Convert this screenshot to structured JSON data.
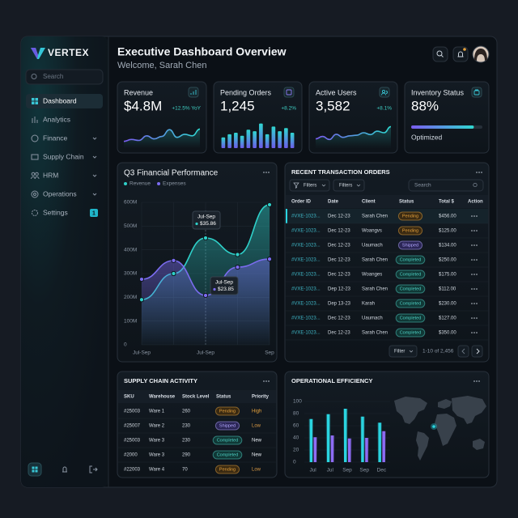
{
  "sidebar": {
    "brand": "VERTEX",
    "search_placeholder": "Search",
    "nav": [
      "Dashboard",
      "Analytics",
      "Finance",
      "Supply Chain",
      "HRM",
      "Operations",
      "Settings"
    ],
    "badge": "1"
  },
  "header": {
    "title": "Executive Dashboard Overview",
    "subtitle": "Welcome, Sarah Chen"
  },
  "kpis": [
    {
      "label": "Revenue",
      "value": "$4.8M",
      "delta": "+12.5% YoY",
      "trend": [
        22,
        28,
        25,
        40,
        30,
        38,
        60,
        35,
        45,
        40,
        62
      ]
    },
    {
      "label": "Pending Orders",
      "value": "1,245",
      "delta": "+8.2%",
      "bars": [
        35,
        45,
        50,
        40,
        60,
        55,
        80,
        45,
        70,
        55,
        65,
        50
      ]
    },
    {
      "label": "Active Users",
      "value": "3,582",
      "delta": "+8.1%",
      "trend": [
        30,
        38,
        28,
        45,
        35,
        40,
        42,
        50,
        44,
        55,
        50,
        70
      ]
    },
    {
      "label": "Inventory Status",
      "value": "88%",
      "progress": 88,
      "status": "Optimized"
    }
  ],
  "financial_chart": {
    "type": "line",
    "title": "Q3 Financial Performance",
    "categories": [
      "Jul-Sep",
      null,
      "Jul-Sep",
      null,
      "Sep"
    ],
    "series": [
      {
        "name": "Revenue",
        "color": "#2fd0c9",
        "values": [
          190,
          300,
          450,
          380,
          590
        ]
      },
      {
        "name": "Expenses",
        "color": "#7b6cf0",
        "values": [
          276,
          355,
          208,
          327,
          361
        ]
      }
    ],
    "ylim": [
      0,
      600
    ],
    "yticks": [
      0,
      {
        "value": 100,
        "label": "100M"
      },
      {
        "value": 200,
        "label": "200M"
      },
      {
        "value": 300,
        "label": "300M"
      },
      {
        "value": 400,
        "label": "400M"
      },
      {
        "value": 500,
        "label": "500M"
      },
      {
        "value": 600,
        "label": "600M"
      }
    ],
    "grid": true,
    "tooltips": [
      {
        "title": "Jul-Sep",
        "value": "$35.86"
      },
      {
        "title": "Jul-Sep",
        "value": "$23.85"
      }
    ]
  },
  "transactions": {
    "title": "RECENT TRANSACTION ORDERS",
    "filters": [
      "Filters",
      "Filters"
    ],
    "search": "Search",
    "columns": [
      "Order ID",
      "Date",
      "Client",
      "Status",
      "Total $",
      "Action"
    ],
    "rows": [
      [
        "#VXE-1023...",
        "Dec 12-23",
        "Sarah Chen",
        "Pending",
        "$456.00"
      ],
      [
        "#VXE-1023...",
        "Dec 12-23",
        "Woangvs",
        "Pending",
        "$125.00"
      ],
      [
        "#VXE-1023...",
        "Dec 12-23",
        "Uaumach",
        "Shipped",
        "$134.00"
      ],
      [
        "#VXE-1023...",
        "Dec 12-23",
        "Sarah Chen",
        "Completed",
        "$250.00"
      ],
      [
        "#VXE-1023...",
        "Dec 12-23",
        "Woanges",
        "Completed",
        "$175.00"
      ],
      [
        "#VXE-1023...",
        "Dep 12-23",
        "Sarah Chen",
        "Completed",
        "$112.00"
      ],
      [
        "#VXE-1023...",
        "Dep 13-23",
        "Karah",
        "Completed",
        "$230.00"
      ],
      [
        "#VXE-1023...",
        "Dec 12-23",
        "Uaumach",
        "Completed",
        "$127.00"
      ],
      [
        "#VXE-1023...",
        "Dec 12-23",
        "Sarah Chen",
        "Completed",
        "$350.00"
      ]
    ],
    "footer_filter": "Filter",
    "pagination": "1-10 of 2,456"
  },
  "supply_chain": {
    "title": "SUPPLY CHAIN ACTIVITY",
    "columns": [
      "SKU",
      "Warehouse",
      "Stock Level",
      "Status",
      "Priority"
    ],
    "rows": [
      [
        "#25003",
        "Ware 1",
        260,
        "Pending",
        "High"
      ],
      [
        "#25007",
        "Ware 2",
        230,
        "Shipped",
        "Low"
      ],
      [
        "#25003",
        "Ware 3",
        230,
        "Completed",
        "New"
      ],
      [
        "#2000",
        "Ware 3",
        290,
        "Completed",
        "New"
      ],
      [
        "#22003",
        "Ware 4",
        70,
        "Pending",
        "Low"
      ]
    ]
  },
  "efficiency": {
    "type": "bar",
    "title": "OPERATIONAL EFFICIENCY",
    "categories": [
      "Jul",
      "Jul",
      "Sep",
      "Sep",
      "Dec"
    ],
    "series": [
      {
        "color": "#2ad4e0",
        "values": [
          71,
          79,
          88,
          75,
          65
        ]
      },
      {
        "color": "#8e6cf5",
        "values": [
          41,
          44,
          39,
          40,
          51
        ]
      }
    ],
    "ylim": [
      0,
      100
    ],
    "yticks": [
      0,
      20,
      40,
      60,
      80,
      100
    ]
  },
  "status_styles": {
    "Pending": {
      "text": "#e6a23c",
      "bg": "#3a2a12"
    },
    "Shipped": {
      "text": "#b3a8ff",
      "bg": "#2b2656"
    },
    "Completed": {
      "text": "#4fd1c5",
      "bg": "#103836"
    }
  },
  "priority_colors": {
    "High": "#e6a23c",
    "Low": "#d99a45",
    "New": "#e8edf2"
  }
}
